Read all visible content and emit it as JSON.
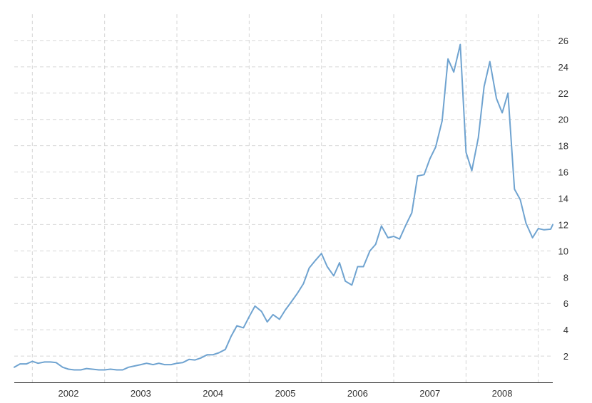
{
  "chart_data": {
    "type": "line",
    "title": "",
    "xlabel": "",
    "ylabel": "",
    "grid": true,
    "y_axis_side": "right",
    "ylim": [
      0,
      28
    ],
    "y_ticks": [
      2,
      4,
      6,
      8,
      10,
      12,
      14,
      16,
      18,
      20,
      22,
      24,
      26
    ],
    "xlim": [
      2001.25,
      2008.7
    ],
    "x_tick_labels": [
      "2002",
      "2003",
      "2004",
      "2005",
      "2006",
      "2007",
      "2008"
    ],
    "x_label_positions": [
      2002.0,
      2003.0,
      2004.0,
      2005.0,
      2006.0,
      2007.0,
      2008.0
    ],
    "x_gridlines": [
      2001.5,
      2002.5,
      2003.5,
      2004.5,
      2005.5,
      2006.5,
      2007.5,
      2008.5
    ],
    "colors": {
      "line": "#6fa3d0",
      "grid": "#d6d6d6",
      "axis": "#333333",
      "text": "#333333"
    },
    "series": [
      {
        "name": "",
        "x": [
          2001.25,
          2001.33,
          2001.42,
          2001.5,
          2001.58,
          2001.67,
          2001.75,
          2001.83,
          2001.92,
          2002.0,
          2002.08,
          2002.17,
          2002.25,
          2002.33,
          2002.42,
          2002.5,
          2002.58,
          2002.67,
          2002.75,
          2002.83,
          2002.92,
          2003.0,
          2003.08,
          2003.17,
          2003.25,
          2003.33,
          2003.42,
          2003.5,
          2003.58,
          2003.67,
          2003.75,
          2003.83,
          2003.92,
          2004.0,
          2004.08,
          2004.17,
          2004.25,
          2004.33,
          2004.42,
          2004.5,
          2004.58,
          2004.67,
          2004.75,
          2004.83,
          2004.92,
          2005.0,
          2005.08,
          2005.17,
          2005.25,
          2005.33,
          2005.42,
          2005.5,
          2005.58,
          2005.67,
          2005.75,
          2005.83,
          2005.92,
          2006.0,
          2006.08,
          2006.17,
          2006.25,
          2006.33,
          2006.42,
          2006.5,
          2006.58,
          2006.67,
          2006.75,
          2006.83,
          2006.92,
          2007.0,
          2007.08,
          2007.17,
          2007.25,
          2007.33,
          2007.42,
          2007.5,
          2007.58,
          2007.67,
          2007.75,
          2007.83,
          2007.92,
          2008.0,
          2008.08,
          2008.17,
          2008.25,
          2008.33,
          2008.42,
          2008.5,
          2008.58,
          2008.67,
          2008.7
        ],
        "y": [
          1.15,
          1.4,
          1.4,
          1.6,
          1.45,
          1.55,
          1.55,
          1.5,
          1.15,
          1.0,
          0.95,
          0.95,
          1.05,
          1.0,
          0.95,
          0.95,
          1.0,
          0.95,
          0.95,
          1.15,
          1.25,
          1.35,
          1.45,
          1.35,
          1.45,
          1.35,
          1.35,
          1.45,
          1.5,
          1.75,
          1.7,
          1.85,
          2.1,
          2.1,
          2.25,
          2.5,
          3.5,
          4.3,
          4.15,
          5.0,
          5.8,
          5.4,
          4.6,
          5.15,
          4.8,
          5.5,
          6.1,
          6.8,
          7.5,
          8.7,
          9.3,
          9.8,
          8.8,
          8.1,
          9.1,
          7.7,
          7.4,
          8.8,
          8.8,
          10.0,
          10.5,
          11.9,
          11.0,
          11.1,
          10.9,
          12.0,
          12.9,
          15.7,
          15.8,
          17.0,
          17.9,
          19.9,
          24.6,
          23.6,
          25.7,
          17.5,
          16.1,
          18.6,
          22.5,
          24.4,
          21.6,
          20.5,
          22.0,
          14.7,
          13.9,
          12.1,
          11.0,
          11.7,
          11.6,
          11.65,
          12.0
        ]
      }
    ]
  }
}
